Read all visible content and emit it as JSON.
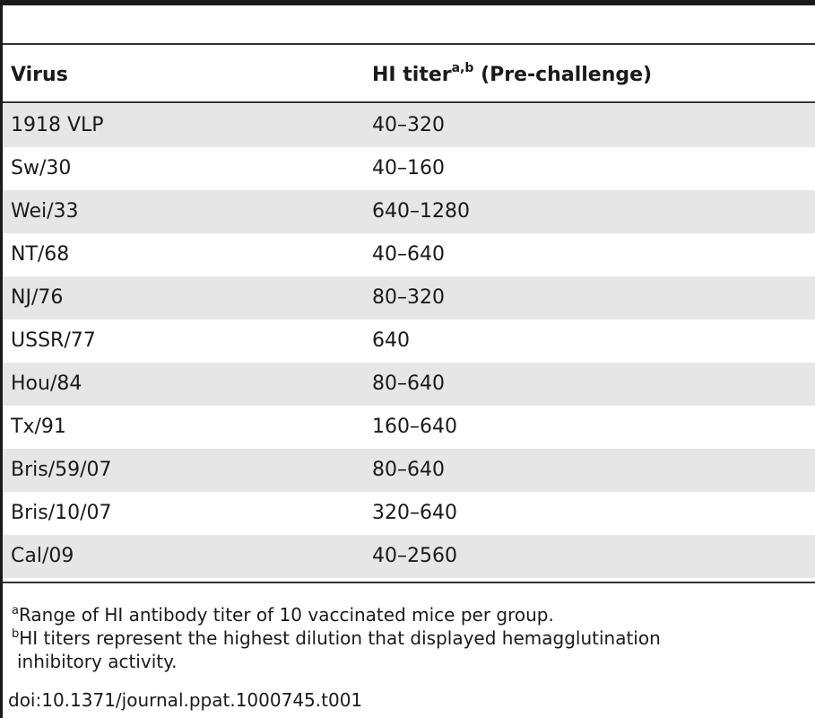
{
  "table": {
    "headers": {
      "virus": "Virus",
      "titer": "HI titer",
      "titer_sup": "a,b",
      "titer_suffix": " (Pre-challenge)"
    },
    "rows": [
      {
        "virus": "1918 VLP",
        "titer": "40–320"
      },
      {
        "virus": "Sw/30",
        "titer": "40–160"
      },
      {
        "virus": "Wei/33",
        "titer": "640–1280"
      },
      {
        "virus": "NT/68",
        "titer": "40–640"
      },
      {
        "virus": "NJ/76",
        "titer": "80–320"
      },
      {
        "virus": "USSR/77",
        "titer": "640"
      },
      {
        "virus": "Hou/84",
        "titer": "80–640"
      },
      {
        "virus": "Tx/91",
        "titer": "160–640"
      },
      {
        "virus": "Bris/59/07",
        "titer": "80–640"
      },
      {
        "virus": "Bris/10/07",
        "titer": "320–640"
      },
      {
        "virus": "Cal/09",
        "titer": "40–2560"
      }
    ]
  },
  "footnotes": [
    {
      "mark": "a",
      "text": "Range of HI antibody titer of 10 vaccinated mice per group."
    },
    {
      "mark": "b",
      "text": "HI titers represent the highest dilution that displayed hemagglutination",
      "text_cont": "inhibitory activity."
    }
  ],
  "doi": "doi:10.1371/journal.ppat.1000745.t001"
}
